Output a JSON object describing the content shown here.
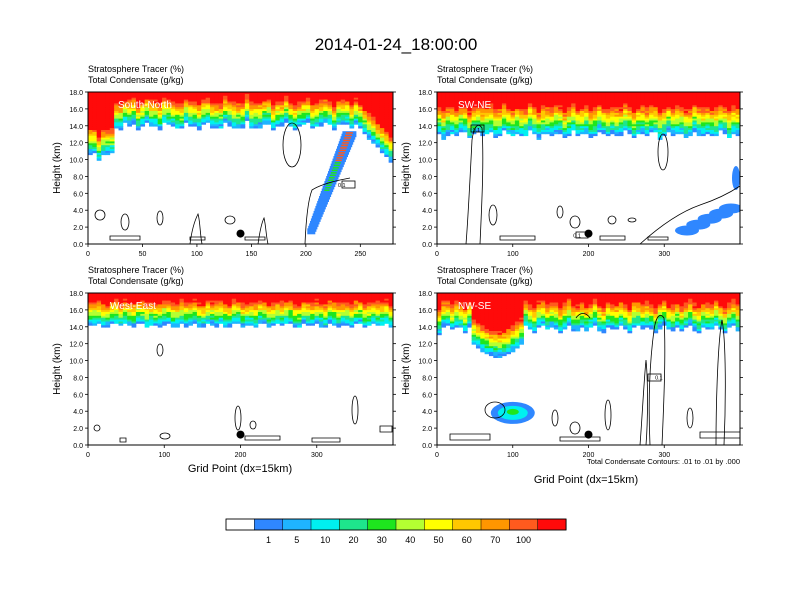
{
  "figure": {
    "title": "2014-01-24_18:00:00",
    "colorbar": {
      "colors": [
        "#ffffff",
        "#2f87ff",
        "#1fb4ff",
        "#00f0f0",
        "#1ee68c",
        "#1ee61e",
        "#b4ff32",
        "#ffff00",
        "#ffc800",
        "#ff9600",
        "#ff5a1e",
        "#ff0a0a"
      ],
      "labels": [
        "1",
        "5",
        "10",
        "20",
        "30",
        "40",
        "50",
        "60",
        "70",
        "100"
      ]
    },
    "contour_note": "Total Condensate Contours: .01 to .01 by .000"
  },
  "chart_data": [
    {
      "type": "heatmap",
      "panel_label": "South-North",
      "header_line1": "Stratosphere Tracer   (%)",
      "header_line2": "Total Condensate   (g/kg)",
      "ylabel": "Height (km)",
      "xlabel": "",
      "xlim": [
        0,
        280
      ],
      "ylim": [
        0,
        18
      ],
      "xticks": [
        "0",
        "50",
        "100",
        "150",
        "200",
        "250"
      ],
      "xtick_values": [
        0,
        50,
        100,
        150,
        200,
        250
      ],
      "yticks": [
        "0.0",
        "2.0",
        "4.0",
        "6.0",
        "8.0",
        "10.0",
        "12.0",
        "14.0",
        "16.0",
        "18.0"
      ],
      "marker": {
        "x": 140,
        "y": 1.0
      },
      "contour_labels": [
        {
          "text": "0.1",
          "x": 233,
          "y": 7.0
        }
      ]
    },
    {
      "type": "heatmap",
      "panel_label": "SW-NE",
      "header_line1": "Stratosphere Tracer   (%)",
      "header_line2": "Total Condensate   (g/kg)",
      "ylabel": "Height (km)",
      "xlabel": "",
      "xlim": [
        0,
        400
      ],
      "ylim": [
        0,
        18
      ],
      "xticks": [
        "0",
        "100",
        "200",
        "300"
      ],
      "xtick_values": [
        0,
        100,
        200,
        300
      ],
      "yticks": [
        "0.0",
        "2.0",
        "4.0",
        "6.0",
        "8.0",
        "10.0",
        "12.0",
        "14.0",
        "16.0",
        "18.0"
      ],
      "marker": {
        "x": 200,
        "y": 1.0
      },
      "contour_labels": [
        {
          "text": "0.1",
          "x": 52,
          "y": 13.5
        },
        {
          "text": "0.1",
          "x": 185,
          "y": 1.0
        }
      ]
    },
    {
      "type": "heatmap",
      "panel_label": "West-East",
      "header_line1": "Stratosphere Tracer   (%)",
      "header_line2": "Total Condensate   (g/kg)",
      "ylabel": "Height (km)",
      "xlabel": "Grid Point (dx=15km)",
      "xlim": [
        0,
        400
      ],
      "ylim": [
        0,
        18
      ],
      "xticks": [
        "0",
        "100",
        "200",
        "300"
      ],
      "xtick_values": [
        0,
        100,
        200,
        300
      ],
      "yticks": [
        "0.0",
        "2.0",
        "4.0",
        "6.0",
        "8.0",
        "10.0",
        "12.0",
        "14.0",
        "16.0",
        "18.0"
      ],
      "marker": {
        "x": 200,
        "y": 1.0
      },
      "contour_labels": []
    },
    {
      "type": "heatmap",
      "panel_label": "NW-SE",
      "header_line1": "Stratosphere Tracer   (%)",
      "header_line2": "Total Condensate   (g/kg)",
      "ylabel": "Height (km)",
      "xlabel": "Grid Point (dx=15km)",
      "xlim": [
        0,
        400
      ],
      "ylim": [
        0,
        18
      ],
      "xticks": [
        "0",
        "100",
        "200",
        "300"
      ],
      "xtick_values": [
        0,
        100,
        200,
        300
      ],
      "yticks": [
        "0.0",
        "2.0",
        "4.0",
        "6.0",
        "8.0",
        "10.0",
        "12.0",
        "14.0",
        "16.0",
        "18.0"
      ],
      "marker": {
        "x": 200,
        "y": 1.0
      },
      "contour_labels": [
        {
          "text": "0.1",
          "x": 293,
          "y": 8.0
        }
      ]
    }
  ]
}
